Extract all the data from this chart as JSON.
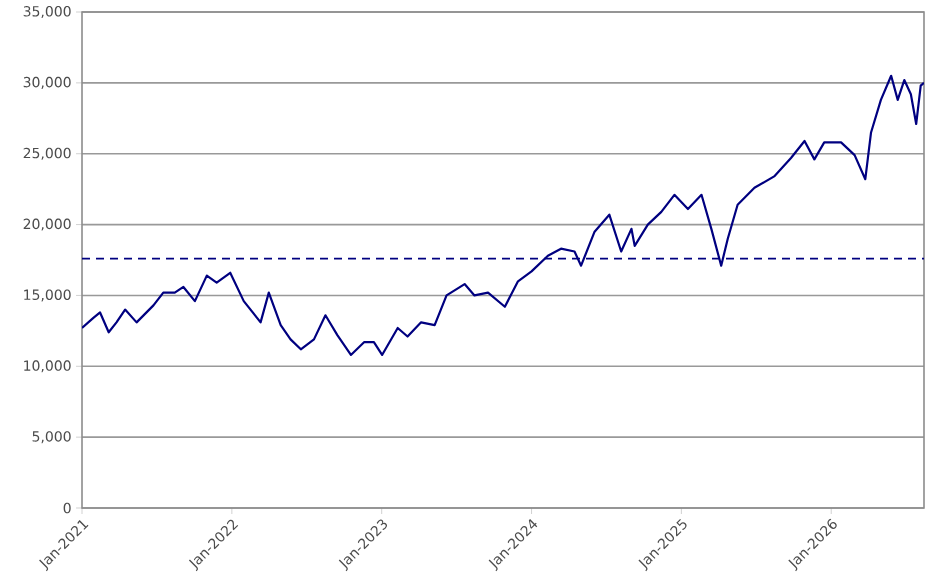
{
  "chart_data": {
    "type": "line",
    "x": [
      "2021-01-01",
      "2021-01-28",
      "2021-02-14",
      "2021-03-07",
      "2021-03-26",
      "2021-04-16",
      "2021-05-14",
      "2021-06-24",
      "2021-07-18",
      "2021-08-15",
      "2021-09-05",
      "2021-10-03",
      "2021-11-01",
      "2021-11-25",
      "2021-12-28",
      "2022-01-30",
      "2022-03-12",
      "2022-04-01",
      "2022-04-30",
      "2022-05-24",
      "2022-06-18",
      "2022-07-20",
      "2022-08-17",
      "2022-09-15",
      "2022-10-18",
      "2022-11-19",
      "2022-12-13",
      "2023-01-02",
      "2023-02-09",
      "2023-03-05",
      "2023-04-07",
      "2023-05-10",
      "2023-06-08",
      "2023-07-22",
      "2023-08-15",
      "2023-09-17",
      "2023-10-28",
      "2023-11-29",
      "2024-01-01",
      "2024-02-10",
      "2024-03-13",
      "2024-04-15",
      "2024-05-01",
      "2024-06-03",
      "2024-07-09",
      "2024-08-07",
      "2024-09-01",
      "2024-09-09",
      "2024-10-11",
      "2024-11-13",
      "2024-12-15",
      "2025-01-17",
      "2025-02-19",
      "2025-03-15",
      "2025-04-08",
      "2025-04-24",
      "2025-05-18",
      "2025-06-28",
      "2025-08-15",
      "2025-09-25",
      "2025-10-28",
      "2025-11-21",
      "2025-12-15",
      "2026-01-25",
      "2026-02-27",
      "2026-03-25",
      "2026-04-08",
      "2026-05-02",
      "2026-05-27",
      "2026-06-12",
      "2026-06-28",
      "2026-07-14",
      "2026-07-27",
      "2026-08-07",
      "2026-08-15"
    ],
    "series": [
      {
        "color": "#000080",
        "values": [
          12700,
          13400,
          13800,
          12400,
          13100,
          14000,
          13100,
          14300,
          15200,
          15200,
          15600,
          14600,
          16400,
          15900,
          16600,
          14600,
          13100,
          15200,
          12900,
          11900,
          11200,
          11900,
          13600,
          12200,
          10800,
          11700,
          11700,
          10800,
          12700,
          12100,
          13100,
          12900,
          15000,
          15800,
          15000,
          15200,
          14200,
          16000,
          16700,
          17800,
          18300,
          18100,
          17100,
          19500,
          20700,
          18100,
          19700,
          18500,
          20000,
          20900,
          22100,
          21100,
          22100,
          19700,
          17100,
          19000,
          21400,
          22600,
          23400,
          24700,
          25900,
          24600,
          25800,
          25800,
          24900,
          23200,
          26500,
          28800,
          30500,
          28800,
          30200,
          29200,
          27100,
          29800,
          30000
        ]
      }
    ],
    "xlim": [
      "2021-01-01",
      "2026-08-15"
    ],
    "xticks": [
      {
        "value": "2021-01-01",
        "label": "Jan-2021"
      },
      {
        "value": "2022-01-01",
        "label": "Jan-2022"
      },
      {
        "value": "2023-01-01",
        "label": "Jan-2023"
      },
      {
        "value": "2024-01-01",
        "label": "Jan-2024"
      },
      {
        "value": "2025-01-01",
        "label": "Jan-2025"
      },
      {
        "value": "2026-01-01",
        "label": "Jan-2026"
      }
    ],
    "ylim": [
      0,
      35000
    ],
    "yticks": [
      0,
      {
        "value": 5000,
        "label": "5,000"
      },
      {
        "value": 10000,
        "label": "10,000"
      },
      {
        "value": 15000,
        "label": "15,000"
      },
      {
        "value": 20000,
        "label": "20,000"
      },
      {
        "value": 25000,
        "label": "25,000"
      },
      {
        "value": 30000,
        "label": "30,000"
      },
      {
        "value": 35000,
        "label": "35,000"
      }
    ],
    "ref_lines": [
      {
        "axis": "y",
        "value": 17600,
        "color": "#000080",
        "line_style": "dashed"
      }
    ],
    "grid": "y"
  }
}
